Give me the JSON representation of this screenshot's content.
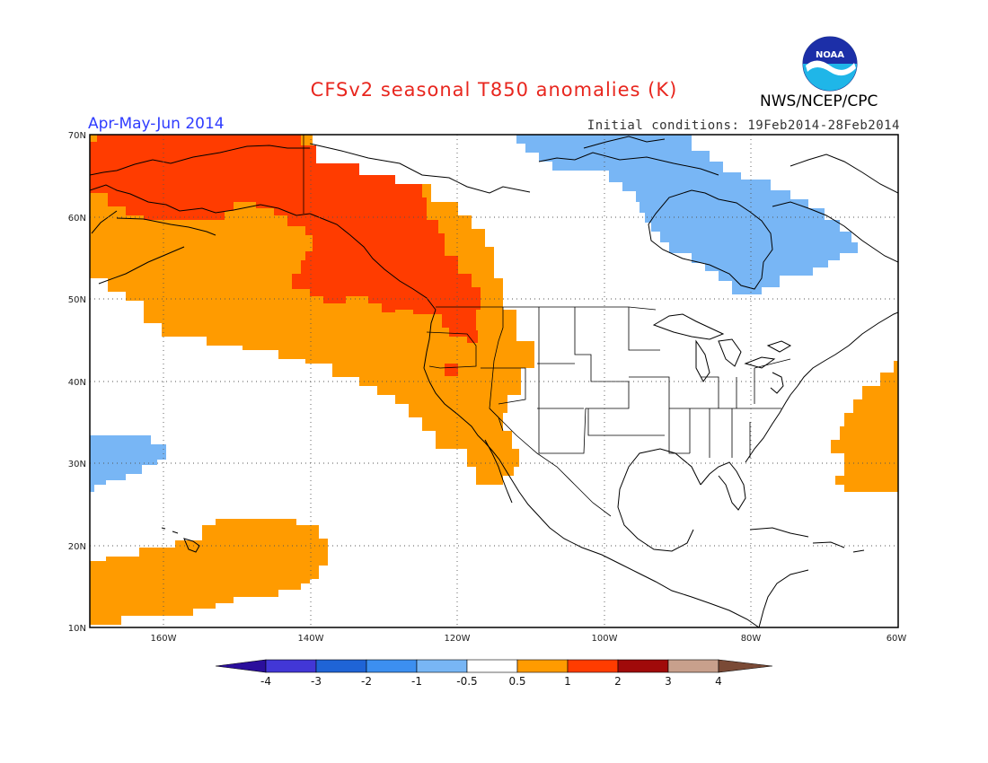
{
  "title": "CFSv2 seasonal T850 anomalies (K)",
  "period": "Apr-May-Jun 2014",
  "initial_conditions": "Initial conditions: 19Feb2014-28Feb2014",
  "agency": "NWS/NCEP/CPC",
  "logo_text": "NOAA",
  "lat_labels": [
    "10N",
    "20N",
    "30N",
    "40N",
    "50N",
    "60N",
    "70N"
  ],
  "lon_labels": [
    "160W",
    "140W",
    "120W",
    "100W",
    "80W",
    "60W"
  ],
  "colorbar": {
    "ticks": [
      "-4",
      "-3",
      "-2",
      "-1",
      "-0.5",
      "0.5",
      "1",
      "2",
      "3",
      "4"
    ],
    "colors": [
      "#2b0f9c",
      "#4237d6",
      "#1f64d6",
      "#3c8ff0",
      "#78b6f5",
      "#ffffff",
      "#ff9b00",
      "#ff3c00",
      "#a00a0a",
      "#c8a08c",
      "#7a4a36"
    ]
  },
  "map_data": {
    "extent": {
      "lon_min": -170,
      "lon_max": -60,
      "lat_min": 10,
      "lat_max": 70
    },
    "grid": "dotted every 10 degrees",
    "anomaly_regions": [
      {
        "class": "1 to 2",
        "color": "#ff3c00",
        "area": "Alaska / western Canada / Pacific Northwest"
      },
      {
        "class": "0.5 to 1",
        "color": "#ff9b00",
        "area": "NE Pacific, western North America, Hawaii region, western Atlantic near 30-40N"
      },
      {
        "class": "-1 to -0.5",
        "color": "#78b6f5",
        "area": "Hudson Bay / northern Quebec, central Pacific near 30N"
      }
    ]
  }
}
